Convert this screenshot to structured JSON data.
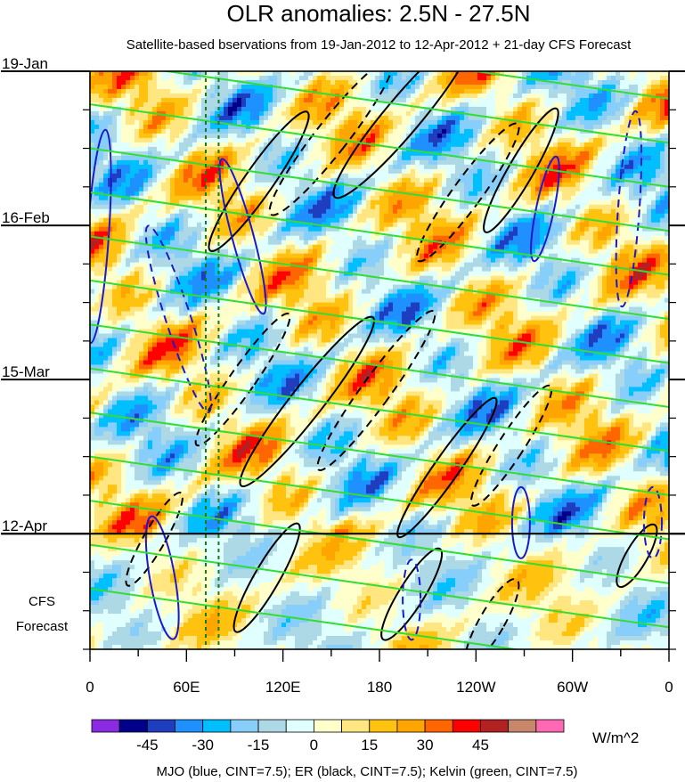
{
  "chart_data": {
    "type": "heatmap",
    "title": "OLR anomalies: 2.5N - 27.5N",
    "subtitle": "Satellite-based bservations from 19-Jan-2012 to 12-Apr-2012 + 21-day CFS Forecast",
    "x_ticks": [
      "0",
      "60E",
      "120E",
      "180",
      "120W",
      "60W",
      "0"
    ],
    "x_tick_lon": [
      0,
      60,
      120,
      180,
      240,
      300,
      360
    ],
    "xlim": [
      0,
      360
    ],
    "y_ticks": [
      "19-Jan",
      "16-Feb",
      "15-Mar",
      "12-Apr"
    ],
    "y_tick_day": [
      0,
      28,
      56,
      84
    ],
    "ylim_days": [
      0,
      105
    ],
    "forecast_start_day": 84,
    "forecast_label_lines": [
      "CFS",
      "Forecast"
    ],
    "colorbar": {
      "unit": "W/m^2",
      "labels": [
        "-45",
        "-30",
        "-15",
        "0",
        "15",
        "30",
        "45"
      ],
      "bins": [
        -60,
        -52.5,
        -45,
        -37.5,
        -30,
        -22.5,
        -15,
        -7.5,
        0,
        7.5,
        15,
        22.5,
        30,
        37.5,
        45,
        52.5,
        60
      ],
      "colors": [
        "#8a2be2",
        "#00008b",
        "#1f3ebf",
        "#1e90ff",
        "#00bfff",
        "#87cefa",
        "#add8e6",
        "#e0ffff",
        "#ffffcc",
        "#ffe680",
        "#ffc30f",
        "#ffa500",
        "#ff6600",
        "#ff0000",
        "#b22222",
        "#c8876a",
        "#ff69b4"
      ]
    },
    "vertical_markers_lon": [
      72,
      80
    ],
    "legend_text": "MJO (blue, CINT=7.5); ER (black, CINT=7.5); Kelvin (green, CINT=7.5)",
    "contours": {
      "mjo_color": "#1a1acc",
      "er_color": "#000000",
      "kelvin_color": "#33dd33"
    }
  }
}
